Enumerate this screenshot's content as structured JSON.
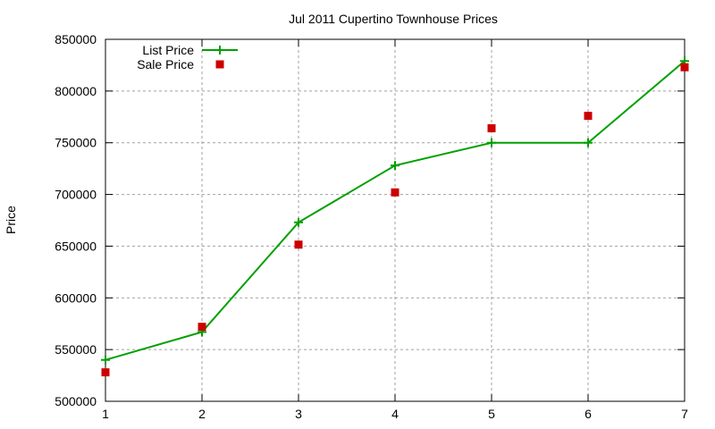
{
  "chart_data": {
    "type": "line",
    "title": "Jul 2011 Cupertino Townhouse Prices",
    "xlabel": "",
    "ylabel": "Price",
    "x": [
      1,
      2,
      3,
      4,
      5,
      6,
      7
    ],
    "xlim": [
      1,
      7
    ],
    "ylim": [
      500000,
      850000
    ],
    "yticks": [
      500000,
      550000,
      600000,
      650000,
      700000,
      750000,
      800000,
      850000
    ],
    "xticks": [
      1,
      2,
      3,
      4,
      5,
      6,
      7
    ],
    "grid": true,
    "legend_position": "top-left",
    "series": [
      {
        "name": "List Price",
        "style": "linespoints",
        "marker": "plus",
        "color": "#00a000",
        "values": [
          540000,
          567000,
          673000,
          728000,
          750000,
          750000,
          829000
        ]
      },
      {
        "name": "Sale Price",
        "style": "points",
        "marker": "square",
        "color": "#cc0000",
        "values": [
          528000,
          572000,
          651500,
          702000,
          764000,
          776000,
          823000
        ]
      }
    ]
  }
}
